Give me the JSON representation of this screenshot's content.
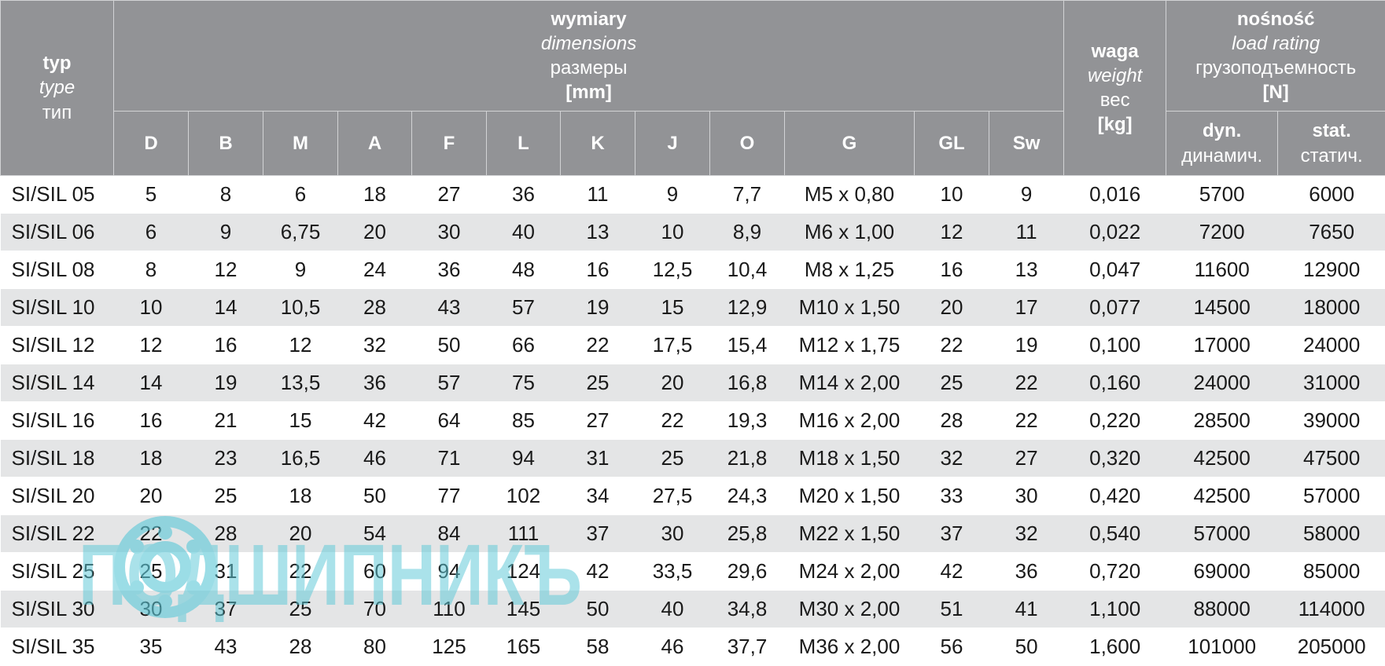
{
  "header": {
    "type": {
      "pl": "typ",
      "en": "type",
      "ru": "тип"
    },
    "dimensions": {
      "pl": "wymiary",
      "en": "dimensions",
      "ru": "размеры",
      "unit": "[mm]"
    },
    "weight": {
      "pl": "waga",
      "en": "weight",
      "ru": "вес",
      "unit": "[kg]"
    },
    "load": {
      "pl": "nośność",
      "en": "load rating",
      "ru": "грузоподъемность",
      "unit": "[N]"
    },
    "cols": [
      "D",
      "B",
      "M",
      "A",
      "F",
      "L",
      "K",
      "J",
      "O",
      "G",
      "GL",
      "Sw"
    ],
    "dyn": {
      "top": "dyn.",
      "ru": "динамич."
    },
    "stat": {
      "top": "stat.",
      "ru": "статич."
    }
  },
  "rows": [
    [
      "SI/SIL 05",
      "5",
      "8",
      "6",
      "18",
      "27",
      "36",
      "11",
      "9",
      "7,7",
      "M5 x 0,80",
      "10",
      "9",
      "0,016",
      "5700",
      "6000"
    ],
    [
      "SI/SIL 06",
      "6",
      "9",
      "6,75",
      "20",
      "30",
      "40",
      "13",
      "10",
      "8,9",
      "M6 x 1,00",
      "12",
      "11",
      "0,022",
      "7200",
      "7650"
    ],
    [
      "SI/SIL 08",
      "8",
      "12",
      "9",
      "24",
      "36",
      "48",
      "16",
      "12,5",
      "10,4",
      "M8 x 1,25",
      "16",
      "13",
      "0,047",
      "11600",
      "12900"
    ],
    [
      "SI/SIL 10",
      "10",
      "14",
      "10,5",
      "28",
      "43",
      "57",
      "19",
      "15",
      "12,9",
      "M10 x 1,50",
      "20",
      "17",
      "0,077",
      "14500",
      "18000"
    ],
    [
      "SI/SIL 12",
      "12",
      "16",
      "12",
      "32",
      "50",
      "66",
      "22",
      "17,5",
      "15,4",
      "M12 x 1,75",
      "22",
      "19",
      "0,100",
      "17000",
      "24000"
    ],
    [
      "SI/SIL 14",
      "14",
      "19",
      "13,5",
      "36",
      "57",
      "75",
      "25",
      "20",
      "16,8",
      "M14 x 2,00",
      "25",
      "22",
      "0,160",
      "24000",
      "31000"
    ],
    [
      "SI/SIL 16",
      "16",
      "21",
      "15",
      "42",
      "64",
      "85",
      "27",
      "22",
      "19,3",
      "M16 x 2,00",
      "28",
      "22",
      "0,220",
      "28500",
      "39000"
    ],
    [
      "SI/SIL 18",
      "18",
      "23",
      "16,5",
      "46",
      "71",
      "94",
      "31",
      "25",
      "21,8",
      "M18 x 1,50",
      "32",
      "27",
      "0,320",
      "42500",
      "47500"
    ],
    [
      "SI/SIL 20",
      "20",
      "25",
      "18",
      "50",
      "77",
      "102",
      "34",
      "27,5",
      "24,3",
      "M20 x 1,50",
      "33",
      "30",
      "0,420",
      "42500",
      "57000"
    ],
    [
      "SI/SIL 22",
      "22",
      "28",
      "20",
      "54",
      "84",
      "111",
      "37",
      "30",
      "25,8",
      "M22 x 1,50",
      "37",
      "32",
      "0,540",
      "57000",
      "58000"
    ],
    [
      "SI/SIL 25",
      "25",
      "31",
      "22",
      "60",
      "94",
      "124",
      "42",
      "33,5",
      "29,6",
      "M24 x 2,00",
      "42",
      "36",
      "0,720",
      "69000",
      "85000"
    ],
    [
      "SI/SIL 30",
      "30",
      "37",
      "25",
      "70",
      "110",
      "145",
      "50",
      "40",
      "34,8",
      "M30 x 2,00",
      "51",
      "41",
      "1,100",
      "88000",
      "114000"
    ],
    [
      "SI/SIL 35",
      "35",
      "43",
      "28",
      "80",
      "125",
      "165",
      "58",
      "46",
      "37,7",
      "M36 x 2,00",
      "56",
      "50",
      "1,600",
      "101000",
      "205000"
    ]
  ],
  "watermark": {
    "text": "ПОДШИПНИКЪ",
    "icon": "bearing-icon",
    "color": "#5ec9d8"
  }
}
